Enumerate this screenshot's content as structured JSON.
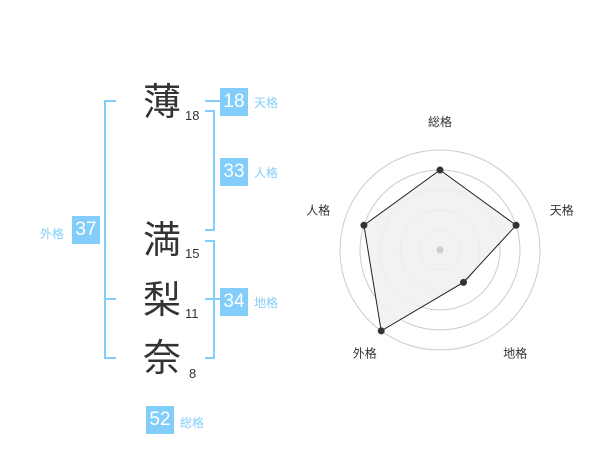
{
  "name_chars": [
    {
      "char": "薄",
      "strokes": "18"
    },
    {
      "char": "満",
      "strokes": "15"
    },
    {
      "char": "梨",
      "strokes": "11"
    },
    {
      "char": "奈",
      "strokes": "8"
    }
  ],
  "fortunes": {
    "tenkaku": {
      "label": "天格",
      "value": "18"
    },
    "jinkaku": {
      "label": "人格",
      "value": "33"
    },
    "chikaku": {
      "label": "地格",
      "value": "34"
    },
    "gaikaku": {
      "label": "外格",
      "value": "37"
    },
    "soukaku": {
      "label": "総格",
      "value": "52"
    }
  },
  "colors": {
    "accent": "#82cdf9",
    "radar_fill": "#f0f0f0",
    "radar_line": "#222222",
    "ring": "#cccccc"
  },
  "chart_data": {
    "type": "radar",
    "axes": [
      "総格",
      "天格",
      "地格",
      "外格",
      "人格"
    ],
    "values": [
      4,
      4,
      2,
      5,
      4
    ],
    "range": [
      0,
      5
    ],
    "levels": 5
  }
}
